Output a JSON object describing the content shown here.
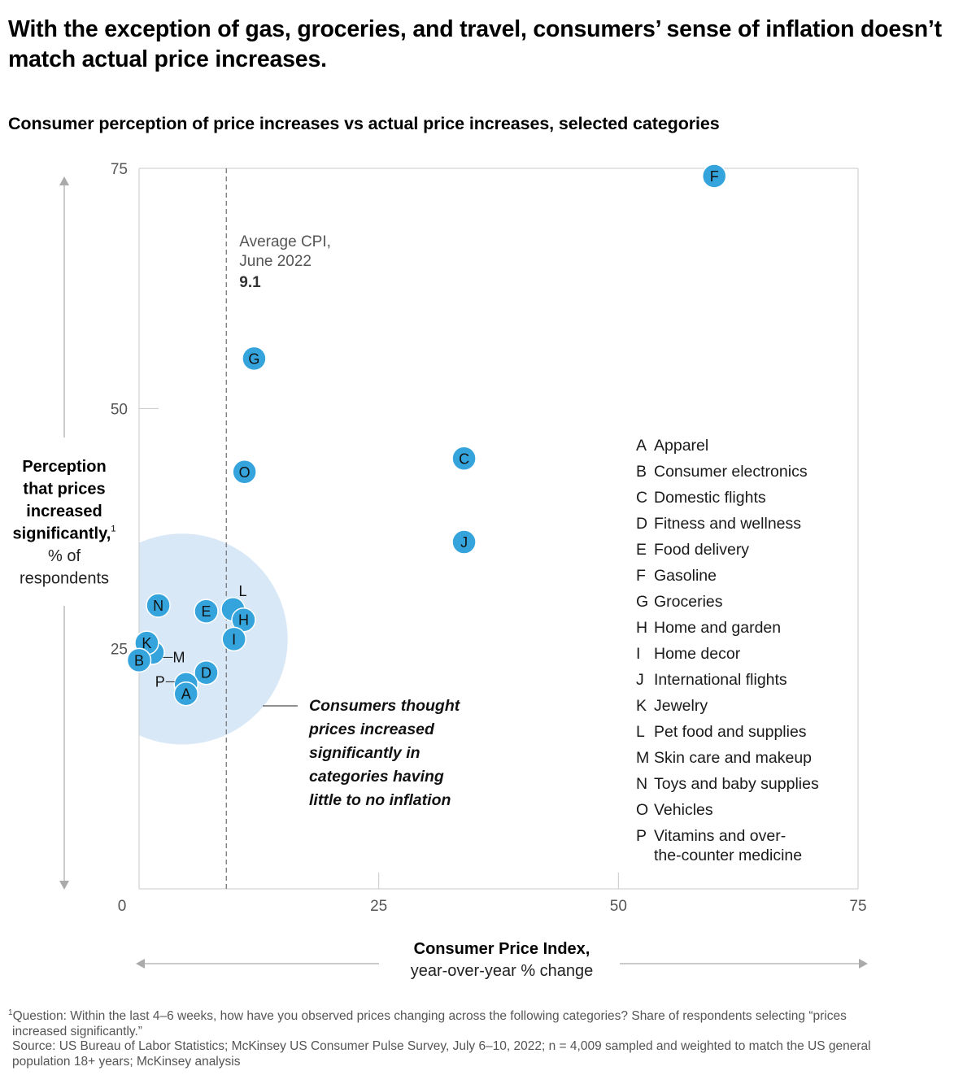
{
  "title": "With the exception of gas, groceries, and travel, consumers’ sense of inflation doesn’t match actual price increases.",
  "subtitle": "Consumer perception of price increases vs actual price increases, selected categories",
  "chart_data": {
    "type": "scatter",
    "title": "Consumer perception of price increases vs actual price increases, selected categories",
    "xlabel": "Consumer Price Index,",
    "xlabel_sub": "year-over-year % change",
    "ylabel_lines": [
      "Perception",
      "that prices",
      "increased",
      "significantly,"
    ],
    "ylabel_footnote_marker": "1",
    "ylabel_sub_lines": [
      "% of",
      "respondents"
    ],
    "xlim": [
      0,
      75
    ],
    "ylim": [
      0,
      75
    ],
    "x_ticks": [
      "0",
      "25",
      "50",
      "75"
    ],
    "y_ticks": [
      "25",
      "50",
      "75"
    ],
    "grid": false,
    "reference_line": {
      "x": 9.1,
      "label_lines": [
        "Average CPI,",
        "June 2022"
      ],
      "value_label": "9.1",
      "style": "dashed"
    },
    "highlight_region": {
      "center": [
        4.5,
        26
      ],
      "radius_x_units": 11
    },
    "annotation_lines": [
      "Consumers thought",
      "prices increased",
      "significantly in",
      "categories having",
      "little to no inflation"
    ],
    "points": [
      {
        "id": "F",
        "name": "Gasoline",
        "x": 60.0,
        "y": 74.2
      },
      {
        "id": "G",
        "name": "Groceries",
        "x": 12.0,
        "y": 55.2
      },
      {
        "id": "O",
        "name": "Vehicles",
        "x": 11.0,
        "y": 43.4
      },
      {
        "id": "C",
        "name": "Domestic flights",
        "x": 33.9,
        "y": 44.8
      },
      {
        "id": "J",
        "name": "International flights",
        "x": 33.9,
        "y": 36.1
      },
      {
        "id": "N",
        "name": "Toys and baby supplies",
        "x": 2.0,
        "y": 29.5
      },
      {
        "id": "E",
        "name": "Food delivery",
        "x": 7.0,
        "y": 28.9
      },
      {
        "id": "L",
        "name": "Pet food and supplies",
        "x": 9.8,
        "y": 29.1,
        "label_outside": "top-right"
      },
      {
        "id": "H",
        "name": "Home and garden",
        "x": 10.9,
        "y": 28.0
      },
      {
        "id": "I",
        "name": "Home decor",
        "x": 9.9,
        "y": 26.0
      },
      {
        "id": "M",
        "name": "Skin care and makeup",
        "x": 1.4,
        "y": 24.6,
        "label_outside": "right"
      },
      {
        "id": "K",
        "name": "Jewelry",
        "x": 0.8,
        "y": 25.6
      },
      {
        "id": "B",
        "name": "Consumer electronics",
        "x": 0.0,
        "y": 23.8
      },
      {
        "id": "D",
        "name": "Fitness and wellness",
        "x": 7.0,
        "y": 22.5
      },
      {
        "id": "P",
        "name": "Vitamins and over-the-counter medicine",
        "x": 4.9,
        "y": 21.3,
        "label_outside": "left"
      },
      {
        "id": "A",
        "name": "Apparel",
        "x": 4.9,
        "y": 20.3
      }
    ],
    "legend": [
      {
        "key": "A",
        "lines": [
          "Apparel"
        ]
      },
      {
        "key": "B",
        "lines": [
          "Consumer electronics"
        ]
      },
      {
        "key": "C",
        "lines": [
          "Domestic flights"
        ]
      },
      {
        "key": "D",
        "lines": [
          "Fitness and wellness"
        ]
      },
      {
        "key": "E",
        "lines": [
          "Food delivery"
        ]
      },
      {
        "key": "F",
        "lines": [
          "Gasoline"
        ]
      },
      {
        "key": "G",
        "lines": [
          "Groceries"
        ]
      },
      {
        "key": "H",
        "lines": [
          "Home and garden"
        ]
      },
      {
        "key": "I",
        "lines": [
          "Home decor"
        ]
      },
      {
        "key": "J",
        "lines": [
          "International flights"
        ]
      },
      {
        "key": "K",
        "lines": [
          "Jewelry"
        ]
      },
      {
        "key": "L",
        "lines": [
          "Pet food and supplies"
        ]
      },
      {
        "key": "M",
        "lines": [
          "Skin care and makeup"
        ]
      },
      {
        "key": "N",
        "lines": [
          "Toys and baby supplies"
        ]
      },
      {
        "key": "O",
        "lines": [
          "Vehicles"
        ]
      },
      {
        "key": "P",
        "lines": [
          "Vitamins and over-",
          "the-counter medicine"
        ]
      }
    ],
    "legend_position": "right-middle",
    "colors": {
      "point": "#35a4dc",
      "point_stroke": "#ffffff",
      "highlight": "#d9e8f7",
      "axis": "#c8c8c8",
      "ref_line": "#777777",
      "arrow": "#aaaaaa"
    }
  },
  "footnotes": {
    "marker": "1",
    "question_line1": "Question: Within the last 4–6 weeks, how have you observed prices changing across the following categories? Share of respondents selecting “prices",
    "question_line2": "increased significantly.”",
    "source_line1": "Source: US Bureau of Labor Statistics; McKinsey US Consumer Pulse Survey, July 6–10, 2022; n = 4,009 sampled and weighted to match the US general",
    "source_line2": "population 18+ years; McKinsey analysis"
  }
}
